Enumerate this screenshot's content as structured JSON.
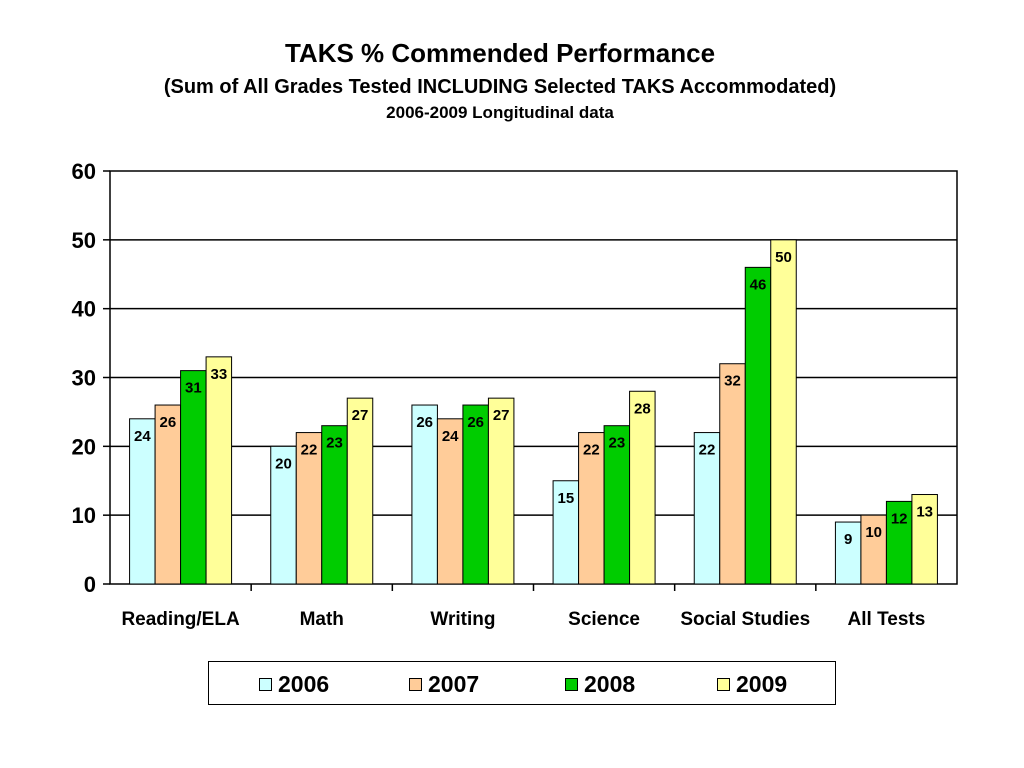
{
  "chart_data": {
    "type": "bar",
    "title": "TAKS % Commended Performance",
    "subtitle": "(Sum of All Grades Tested INCLUDING Selected TAKS Accommodated)",
    "subsubtitle": "2006-2009 Longitudinal data",
    "xlabel": "",
    "ylabel": "",
    "categories": [
      "Reading/ELA",
      "Math",
      "Writing",
      "Science",
      "Social Studies",
      "All Tests"
    ],
    "series": [
      {
        "name": "2006",
        "color": "#ccffff",
        "values": [
          24,
          20,
          26,
          15,
          22,
          9
        ]
      },
      {
        "name": "2007",
        "color": "#ffcc99",
        "values": [
          26,
          22,
          24,
          22,
          32,
          10
        ]
      },
      {
        "name": "2008",
        "color": "#00cc00",
        "values": [
          31,
          23,
          26,
          23,
          46,
          12
        ]
      },
      {
        "name": "2009",
        "color": "#ffff99",
        "values": [
          33,
          27,
          27,
          28,
          50,
          13
        ]
      }
    ],
    "ylim": [
      0,
      60
    ],
    "yticks": [
      0,
      10,
      20,
      30,
      40,
      50,
      60
    ],
    "grid": true,
    "data_labels": true,
    "legend_position": "bottom"
  }
}
